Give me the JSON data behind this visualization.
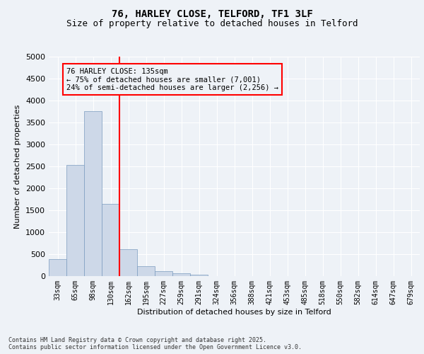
{
  "title1": "76, HARLEY CLOSE, TELFORD, TF1 3LF",
  "title2": "Size of property relative to detached houses in Telford",
  "xlabel": "Distribution of detached houses by size in Telford",
  "ylabel": "Number of detached properties",
  "categories": [
    "33sqm",
    "65sqm",
    "98sqm",
    "130sqm",
    "162sqm",
    "195sqm",
    "227sqm",
    "259sqm",
    "291sqm",
    "324sqm",
    "356sqm",
    "388sqm",
    "421sqm",
    "453sqm",
    "485sqm",
    "518sqm",
    "550sqm",
    "582sqm",
    "614sqm",
    "647sqm",
    "679sqm"
  ],
  "values": [
    380,
    2530,
    3760,
    1650,
    620,
    230,
    105,
    60,
    40,
    0,
    0,
    0,
    0,
    0,
    0,
    0,
    0,
    0,
    0,
    0,
    0
  ],
  "bar_color": "#cdd8e8",
  "bar_edge_color": "#7a9bbf",
  "vline_x": 3.5,
  "vline_color": "red",
  "ylim": [
    0,
    5000
  ],
  "yticks": [
    0,
    500,
    1000,
    1500,
    2000,
    2500,
    3000,
    3500,
    4000,
    4500,
    5000
  ],
  "annotation_text": "76 HARLEY CLOSE: 135sqm\n← 75% of detached houses are smaller (7,001)\n24% of semi-detached houses are larger (2,256) →",
  "annotation_box_color": "red",
  "footer_text": "Contains HM Land Registry data © Crown copyright and database right 2025.\nContains public sector information licensed under the Open Government Licence v3.0.",
  "background_color": "#eef2f7",
  "grid_color": "#ffffff"
}
